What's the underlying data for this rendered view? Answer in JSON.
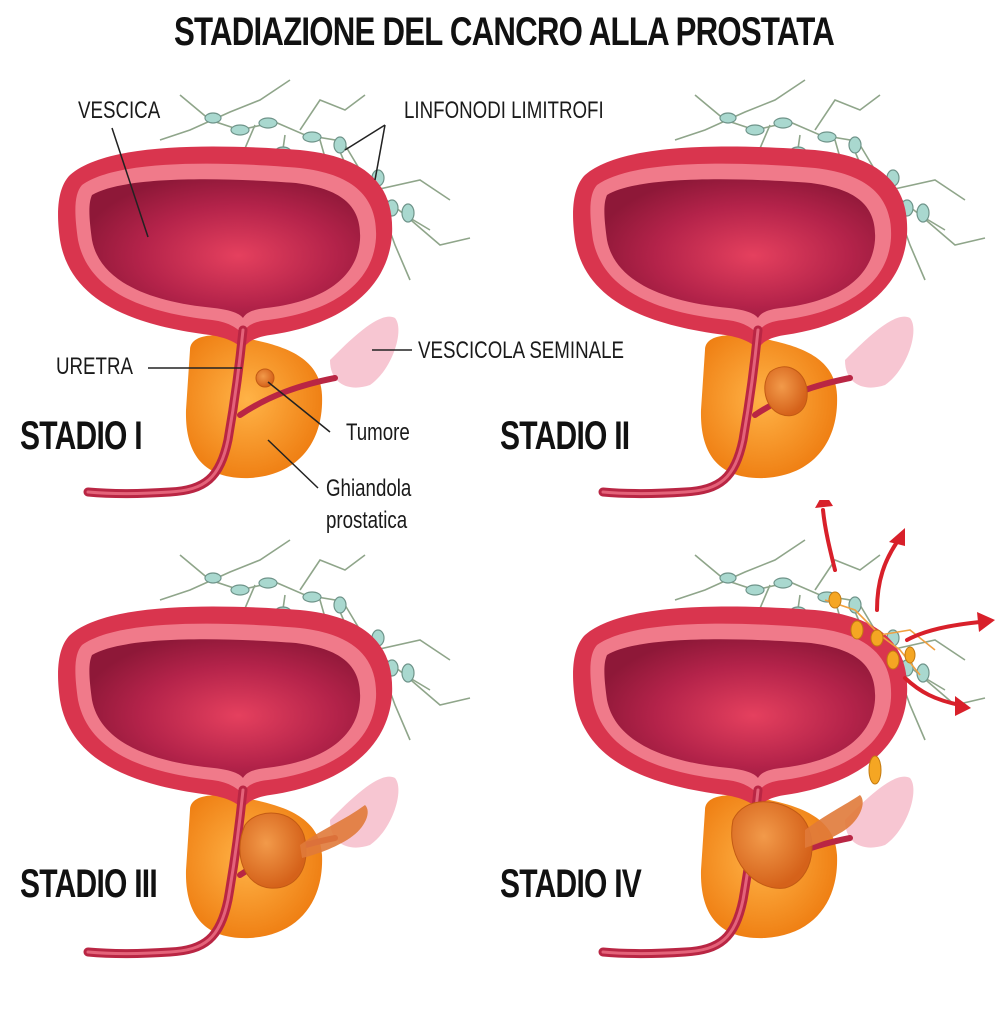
{
  "title": "STADIAZIONE DEL CANCRO ALLA PROSTATA",
  "labels": {
    "vescica": "VESCICA",
    "linfonodi": "LINFONODI LIMITROFI",
    "uretra": "URETRA",
    "vescicola": "VESCICOLA SEMINALE",
    "tumore": "Tumore",
    "ghiandola_1": "Ghiandola",
    "ghiandola_2": "prostatica"
  },
  "stages": [
    {
      "label": "STADIO I",
      "tumor_spread": "small"
    },
    {
      "label": "STADIO II",
      "tumor_spread": "medium"
    },
    {
      "label": "STADIO III",
      "tumor_spread": "seminal"
    },
    {
      "label": "STADIO IV",
      "tumor_spread": "metastatic"
    }
  ],
  "colors": {
    "bladder_outer": "#d9354e",
    "bladder_inner": "#a81e40",
    "bladder_rim": "#f07a8a",
    "prostate": "#f28a1a",
    "tumor": "#e06a1c",
    "seminal": "#f7c6d2",
    "lymph": "#a9d8cf",
    "arrow": "#d8202a"
  }
}
